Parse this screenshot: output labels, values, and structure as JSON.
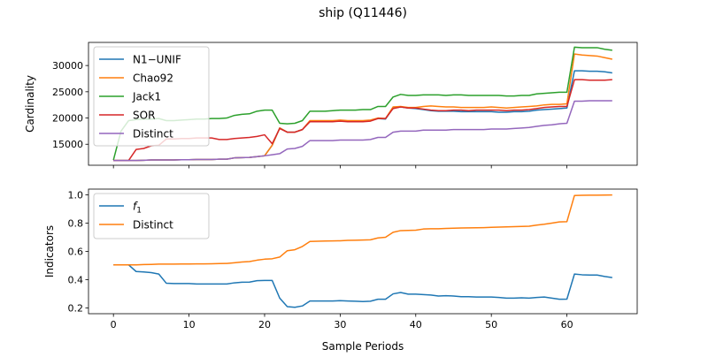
{
  "figure": {
    "title": "ship (Q11446)",
    "xlabel": "Sample Periods"
  },
  "chart_data": [
    {
      "type": "line",
      "title": "",
      "xlabel": "",
      "ylabel": "Cardinality",
      "xlim": [
        -3.3,
        69.3
      ],
      "ylim": [
        11000,
        34400
      ],
      "xticks": [
        0,
        10,
        20,
        30,
        40,
        50,
        60
      ],
      "yticks": [
        15000,
        20000,
        25000,
        30000
      ],
      "ytick_labels": [
        "15000",
        "20000",
        "25000",
        "30000"
      ],
      "grid": false,
      "legend": "top-left",
      "x": [
        0,
        1,
        2,
        3,
        4,
        5,
        6,
        7,
        8,
        9,
        10,
        11,
        12,
        13,
        14,
        15,
        16,
        17,
        18,
        19,
        20,
        21,
        22,
        23,
        24,
        25,
        26,
        27,
        28,
        29,
        30,
        31,
        32,
        33,
        34,
        35,
        36,
        37,
        38,
        39,
        40,
        41,
        42,
        43,
        44,
        45,
        46,
        47,
        48,
        49,
        50,
        51,
        52,
        53,
        54,
        55,
        56,
        57,
        58,
        59,
        60,
        61,
        62,
        63,
        64,
        65,
        66
      ],
      "series": [
        {
          "name": "N1−UNIF",
          "color": "#1f77b4",
          "values": [
            11900,
            11900,
            11900,
            11900,
            11950,
            12000,
            12000,
            12000,
            12000,
            12050,
            12050,
            12100,
            12100,
            12100,
            12150,
            12150,
            12400,
            12450,
            12500,
            12650,
            12800,
            14800,
            18100,
            17300,
            17300,
            17800,
            19400,
            19400,
            19400,
            19400,
            19500,
            19400,
            19400,
            19400,
            19500,
            19900,
            19800,
            21900,
            22100,
            21900,
            21800,
            21600,
            21400,
            21300,
            21300,
            21300,
            21200,
            21200,
            21200,
            21200,
            21200,
            21100,
            21100,
            21200,
            21200,
            21300,
            21500,
            21600,
            21700,
            21800,
            21900,
            29000,
            29000,
            28900,
            28900,
            28800,
            28600
          ]
        },
        {
          "name": "Chao92",
          "color": "#ff7f0e",
          "values": [
            11900,
            11900,
            11900,
            11900,
            11950,
            12000,
            12000,
            12000,
            12000,
            12050,
            12050,
            12100,
            12100,
            12100,
            12150,
            12150,
            12400,
            12450,
            12500,
            12650,
            12800,
            14800,
            18100,
            17300,
            17300,
            17800,
            19500,
            19500,
            19500,
            19500,
            19600,
            19500,
            19500,
            19500,
            19600,
            20000,
            19900,
            22100,
            22200,
            22000,
            22000,
            22200,
            22300,
            22200,
            22100,
            22100,
            22000,
            22000,
            22000,
            22000,
            22100,
            22000,
            21900,
            22000,
            22100,
            22200,
            22300,
            22500,
            22600,
            22600,
            22700,
            32200,
            32000,
            31900,
            31800,
            31500,
            31200
          ]
        },
        {
          "name": "Jack1",
          "color": "#2ca02c",
          "values": [
            12000,
            17500,
            19500,
            19700,
            19800,
            19800,
            19900,
            19500,
            19500,
            19600,
            19700,
            19800,
            19800,
            19900,
            19900,
            20000,
            20500,
            20700,
            20800,
            21300,
            21500,
            21500,
            19000,
            18900,
            19000,
            19500,
            21300,
            21300,
            21300,
            21400,
            21500,
            21500,
            21500,
            21600,
            21600,
            22200,
            22200,
            24000,
            24500,
            24300,
            24300,
            24400,
            24400,
            24400,
            24300,
            24400,
            24400,
            24300,
            24300,
            24300,
            24300,
            24300,
            24200,
            24200,
            24300,
            24300,
            24600,
            24700,
            24800,
            24900,
            24900,
            33500,
            33400,
            33400,
            33400,
            33100,
            32900
          ]
        },
        {
          "name": "SOR",
          "color": "#d62728",
          "values": [
            11900,
            11900,
            11900,
            14000,
            14200,
            14700,
            14800,
            16000,
            16000,
            16100,
            16100,
            16200,
            16200,
            16200,
            15900,
            15900,
            16100,
            16200,
            16300,
            16500,
            16800,
            15100,
            18000,
            17300,
            17300,
            17800,
            19300,
            19300,
            19300,
            19300,
            19400,
            19300,
            19300,
            19300,
            19400,
            19900,
            19900,
            21800,
            22100,
            21900,
            21900,
            21700,
            21500,
            21400,
            21400,
            21500,
            21500,
            21400,
            21500,
            21500,
            21500,
            21500,
            21400,
            21500,
            21500,
            21600,
            21800,
            22000,
            22100,
            22200,
            22200,
            27300,
            27300,
            27200,
            27200,
            27200,
            27300
          ]
        },
        {
          "name": "Distinct",
          "color": "#9467bd",
          "values": [
            11900,
            11900,
            11900,
            11900,
            11950,
            12000,
            12000,
            12000,
            12000,
            12050,
            12050,
            12100,
            12100,
            12100,
            12150,
            12150,
            12400,
            12450,
            12500,
            12650,
            12800,
            13000,
            13200,
            14100,
            14200,
            14600,
            15700,
            15700,
            15700,
            15700,
            15800,
            15800,
            15800,
            15800,
            15900,
            16300,
            16300,
            17300,
            17500,
            17500,
            17500,
            17700,
            17700,
            17700,
            17700,
            17800,
            17800,
            17800,
            17800,
            17800,
            17900,
            17900,
            17900,
            18000,
            18100,
            18200,
            18400,
            18600,
            18700,
            18900,
            19000,
            23200,
            23200,
            23300,
            23300,
            23300,
            23300
          ]
        }
      ]
    },
    {
      "type": "line",
      "title": "",
      "xlabel": "Sample Periods",
      "ylabel": "Indicators",
      "xlim": [
        -3.3,
        69.3
      ],
      "ylim": [
        0.16,
        1.04
      ],
      "xticks": [
        0,
        10,
        20,
        30,
        40,
        50,
        60
      ],
      "yticks": [
        0.2,
        0.4,
        0.6,
        0.8,
        1.0
      ],
      "ytick_labels": [
        "0.2",
        "0.4",
        "0.6",
        "0.8",
        "1.0"
      ],
      "grid": false,
      "legend": "top-left",
      "x": [
        0,
        1,
        2,
        3,
        4,
        5,
        6,
        7,
        8,
        9,
        10,
        11,
        12,
        13,
        14,
        15,
        16,
        17,
        18,
        19,
        20,
        21,
        22,
        23,
        24,
        25,
        26,
        27,
        28,
        29,
        30,
        31,
        32,
        33,
        34,
        35,
        36,
        37,
        38,
        39,
        40,
        41,
        42,
        43,
        44,
        45,
        46,
        47,
        48,
        49,
        50,
        51,
        52,
        53,
        54,
        55,
        56,
        57,
        58,
        59,
        60,
        61,
        62,
        63,
        64,
        65,
        66
      ],
      "series": [
        {
          "name": "f",
          "name_sub": "1",
          "color": "#1f77b4",
          "values": [
            0.505,
            0.505,
            0.505,
            0.458,
            0.455,
            0.45,
            0.44,
            0.375,
            0.373,
            0.373,
            0.373,
            0.37,
            0.37,
            0.37,
            0.37,
            0.37,
            0.378,
            0.382,
            0.383,
            0.393,
            0.395,
            0.395,
            0.27,
            0.21,
            0.205,
            0.215,
            0.25,
            0.25,
            0.25,
            0.25,
            0.252,
            0.25,
            0.248,
            0.246,
            0.248,
            0.262,
            0.262,
            0.3,
            0.31,
            0.298,
            0.298,
            0.295,
            0.292,
            0.285,
            0.287,
            0.285,
            0.28,
            0.28,
            0.278,
            0.278,
            0.278,
            0.275,
            0.27,
            0.27,
            0.272,
            0.27,
            0.275,
            0.278,
            0.27,
            0.262,
            0.263,
            0.44,
            0.435,
            0.433,
            0.433,
            0.423,
            0.415
          ]
        },
        {
          "name": "Distinct",
          "name_sub": "",
          "color": "#ff7f0e",
          "values": [
            0.505,
            0.505,
            0.505,
            0.505,
            0.507,
            0.508,
            0.51,
            0.51,
            0.51,
            0.511,
            0.511,
            0.512,
            0.512,
            0.513,
            0.514,
            0.515,
            0.52,
            0.525,
            0.528,
            0.538,
            0.545,
            0.548,
            0.56,
            0.605,
            0.612,
            0.635,
            0.67,
            0.672,
            0.673,
            0.674,
            0.675,
            0.678,
            0.679,
            0.68,
            0.682,
            0.695,
            0.7,
            0.735,
            0.747,
            0.748,
            0.75,
            0.758,
            0.76,
            0.76,
            0.762,
            0.764,
            0.765,
            0.766,
            0.767,
            0.768,
            0.77,
            0.772,
            0.773,
            0.775,
            0.776,
            0.778,
            0.786,
            0.792,
            0.8,
            0.808,
            0.81,
            0.995,
            0.996,
            0.997,
            0.997,
            0.998,
            0.999
          ]
        }
      ]
    }
  ]
}
